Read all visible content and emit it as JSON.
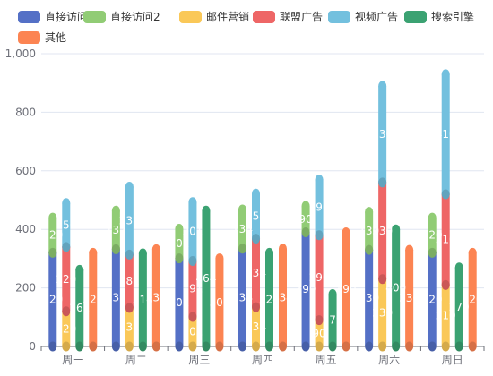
{
  "chart_data": {
    "type": "bar",
    "style": "3d-cylinder-stacked",
    "categories": [
      "周一",
      "周二",
      "周三",
      "周四",
      "周五",
      "周六",
      "周日"
    ],
    "ylim": [
      0,
      1000
    ],
    "yticks": [
      0,
      200,
      400,
      600,
      800,
      1000
    ],
    "ytick_labels": [
      "0",
      "200",
      "400",
      "600",
      "800",
      "1,000"
    ],
    "grid": true,
    "legend_position": "top-left",
    "series": [
      {
        "name": "直接访问",
        "color": "#5470c6",
        "stack": "a",
        "values": [
          320,
          332,
          301,
          334,
          390,
          330,
          320
        ]
      },
      {
        "name": "直接访问2",
        "color": "#91cc75",
        "stack": "a",
        "values": [
          120,
          132,
          101,
          134,
          90,
          130,
          120
        ]
      },
      {
        "name": "邮件营销",
        "color": "#fac858",
        "stack": "b",
        "values": [
          120,
          132,
          101,
          134,
          90,
          230,
          210
        ]
      },
      {
        "name": "联盟广告",
        "color": "#ee6666",
        "stack": "b",
        "values": [
          220,
          182,
          191,
          234,
          290,
          330,
          310
        ]
      },
      {
        "name": "视频广告",
        "color": "#73c0de",
        "stack": "b",
        "values": [
          150,
          232,
          201,
          154,
          190,
          330,
          410
        ]
      },
      {
        "name": "搜索引擎",
        "color": "#3ba272",
        "stack": "c",
        "values": [
          262,
          318,
          464,
          320,
          179,
          400,
          270
        ]
      },
      {
        "name": "其他",
        "color": "#fc8452",
        "stack": "d",
        "values": [
          320,
          332,
          301,
          334,
          390,
          330,
          320
        ]
      }
    ]
  }
}
